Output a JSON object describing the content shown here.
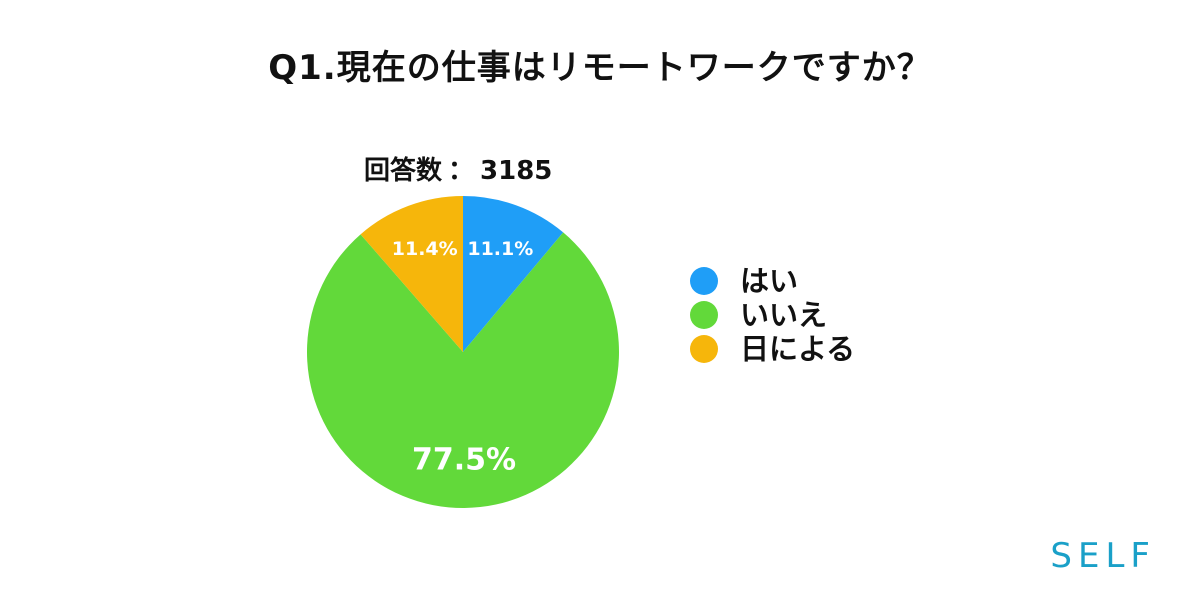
{
  "title": "Q1.現在の仕事はリモートワークですか？",
  "response_count": {
    "label": "回答数",
    "separator": "：",
    "value": "3185"
  },
  "brand": {
    "text": "SELF",
    "color": "#1aa0c8"
  },
  "chart_data": {
    "type": "pie",
    "start_angle_deg": 0,
    "direction": "clockwise",
    "slices": [
      {
        "label": "はい",
        "value": 11.1,
        "display": "11.1%",
        "color": "#1f9ef7"
      },
      {
        "label": "いいえ",
        "value": 77.5,
        "display": "77.5%",
        "color": "#62d93a"
      },
      {
        "label": "日による",
        "value": 11.4,
        "display": "11.4%",
        "color": "#f6b60b"
      }
    ],
    "legend": {
      "position": "right",
      "items": [
        "はい",
        "いいえ",
        "日による"
      ]
    }
  }
}
